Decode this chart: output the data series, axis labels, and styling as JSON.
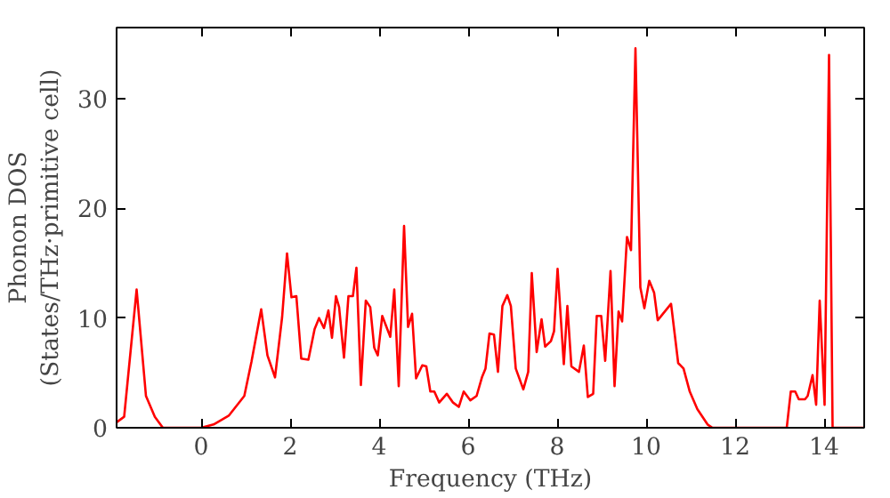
{
  "chart_data": {
    "type": "line",
    "xlabel": "Frequency (THz)",
    "ylabel": "Phonon DOS\n(States/THz·primitive cell)",
    "xlim": [
      -1.9,
      14.9
    ],
    "ylim": [
      0,
      36.5
    ],
    "xticks": [
      0,
      2,
      4,
      6,
      8,
      10,
      12,
      14
    ],
    "yticks": [
      0,
      10,
      20,
      30
    ],
    "grid": false,
    "line_style": "solid",
    "series": [
      {
        "color": "#ff0000",
        "x": [
          -1.9,
          -1.73,
          -1.45,
          -1.24,
          -1.04,
          -0.86,
          0,
          0.28,
          0.62,
          0.97,
          1.13,
          1.35,
          1.49,
          1.66,
          1.82,
          1.93,
          2.03,
          2.14,
          2.25,
          2.41,
          2.55,
          2.65,
          2.76,
          2.86,
          2.94,
          3.03,
          3.1,
          3.21,
          3.31,
          3.41,
          3.49,
          3.59,
          3.7,
          3.8,
          3.89,
          3.97,
          4.07,
          4.25,
          4.34,
          4.44,
          4.56,
          4.65,
          4.74,
          4.83,
          4.97,
          5.06,
          5.15,
          5.24,
          5.35,
          5.52,
          5.66,
          5.79,
          5.9,
          6.05,
          6.19,
          6.31,
          6.39,
          6.48,
          6.58,
          6.67,
          6.77,
          6.88,
          6.96,
          7.07,
          7.24,
          7.35,
          7.43,
          7.54,
          7.65,
          7.73,
          7.86,
          7.93,
          8.01,
          8.15,
          8.23,
          8.32,
          8.49,
          8.6,
          8.69,
          8.81,
          8.89,
          8.99,
          9.08,
          9.2,
          9.29,
          9.38,
          9.46,
          9.57,
          9.66,
          9.76,
          9.87,
          9.96,
          10.07,
          10.18,
          10.26,
          10.56,
          10.72,
          10.84,
          10.98,
          11.15,
          11.38,
          11.49,
          13.16,
          13.25,
          13.35,
          13.43,
          13.57,
          13.63,
          13.74,
          13.82,
          13.9,
          14.01,
          14.11,
          14.19,
          14.9
        ],
        "values": [
          0.5,
          1.0,
          12.6,
          2.9,
          1.0,
          0,
          0,
          0.3,
          1.1,
          2.9,
          6.0,
          10.8,
          6.6,
          4.6,
          10.1,
          15.9,
          11.9,
          12.0,
          6.3,
          6.2,
          9.0,
          10.0,
          9.1,
          10.7,
          8.2,
          12.0,
          11.0,
          6.4,
          12.0,
          12.0,
          14.6,
          3.9,
          11.6,
          11.0,
          7.3,
          6.6,
          10.2,
          8.3,
          12.6,
          3.8,
          18.4,
          9.2,
          10.4,
          4.5,
          5.7,
          5.6,
          3.3,
          3.3,
          2.3,
          3.1,
          2.3,
          1.9,
          3.3,
          2.5,
          2.9,
          4.6,
          5.4,
          8.6,
          8.5,
          5.1,
          11.1,
          12.1,
          11.1,
          5.4,
          3.5,
          5.1,
          14.1,
          6.9,
          9.9,
          7.4,
          7.9,
          8.8,
          14.5,
          5.8,
          11.1,
          5.6,
          5.1,
          7.5,
          2.8,
          3.1,
          10.2,
          10.2,
          6.1,
          14.3,
          3.8,
          10.6,
          9.7,
          17.4,
          16.2,
          34.6,
          12.8,
          10.9,
          13.4,
          12.3,
          9.8,
          11.3,
          5.9,
          5.4,
          3.3,
          1.7,
          0.3,
          0,
          0,
          3.3,
          3.3,
          2.6,
          2.6,
          2.9,
          4.8,
          2.1,
          11.6,
          2.1,
          34.0,
          0,
          0
        ]
      }
    ]
  }
}
